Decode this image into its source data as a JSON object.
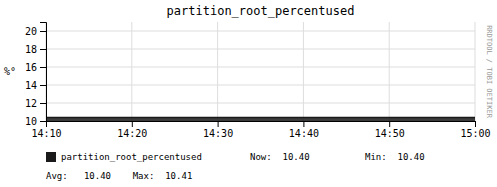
{
  "chart_data": {
    "type": "area",
    "title": "partition_root_percentused",
    "y_label": "%°",
    "categories": [
      "14:10",
      "14:20",
      "14:30",
      "14:40",
      "14:50",
      "15:00"
    ],
    "series": [
      {
        "name": "partition_root_percentused",
        "color": "#1a1a1a",
        "values": [
          10.4,
          10.4,
          10.4,
          10.4,
          10.4,
          10.4
        ]
      }
    ],
    "ylim": [
      10,
      21
    ],
    "yticks": [
      10,
      12,
      14,
      16,
      18,
      20
    ],
    "grid": true,
    "legend": "bottom",
    "annotations": [
      "Now:  10.40",
      "Min:  10.40",
      "Avg:   10.40    Max:  10.41",
      "RRDTOOL / TOBI OETIKER"
    ]
  }
}
